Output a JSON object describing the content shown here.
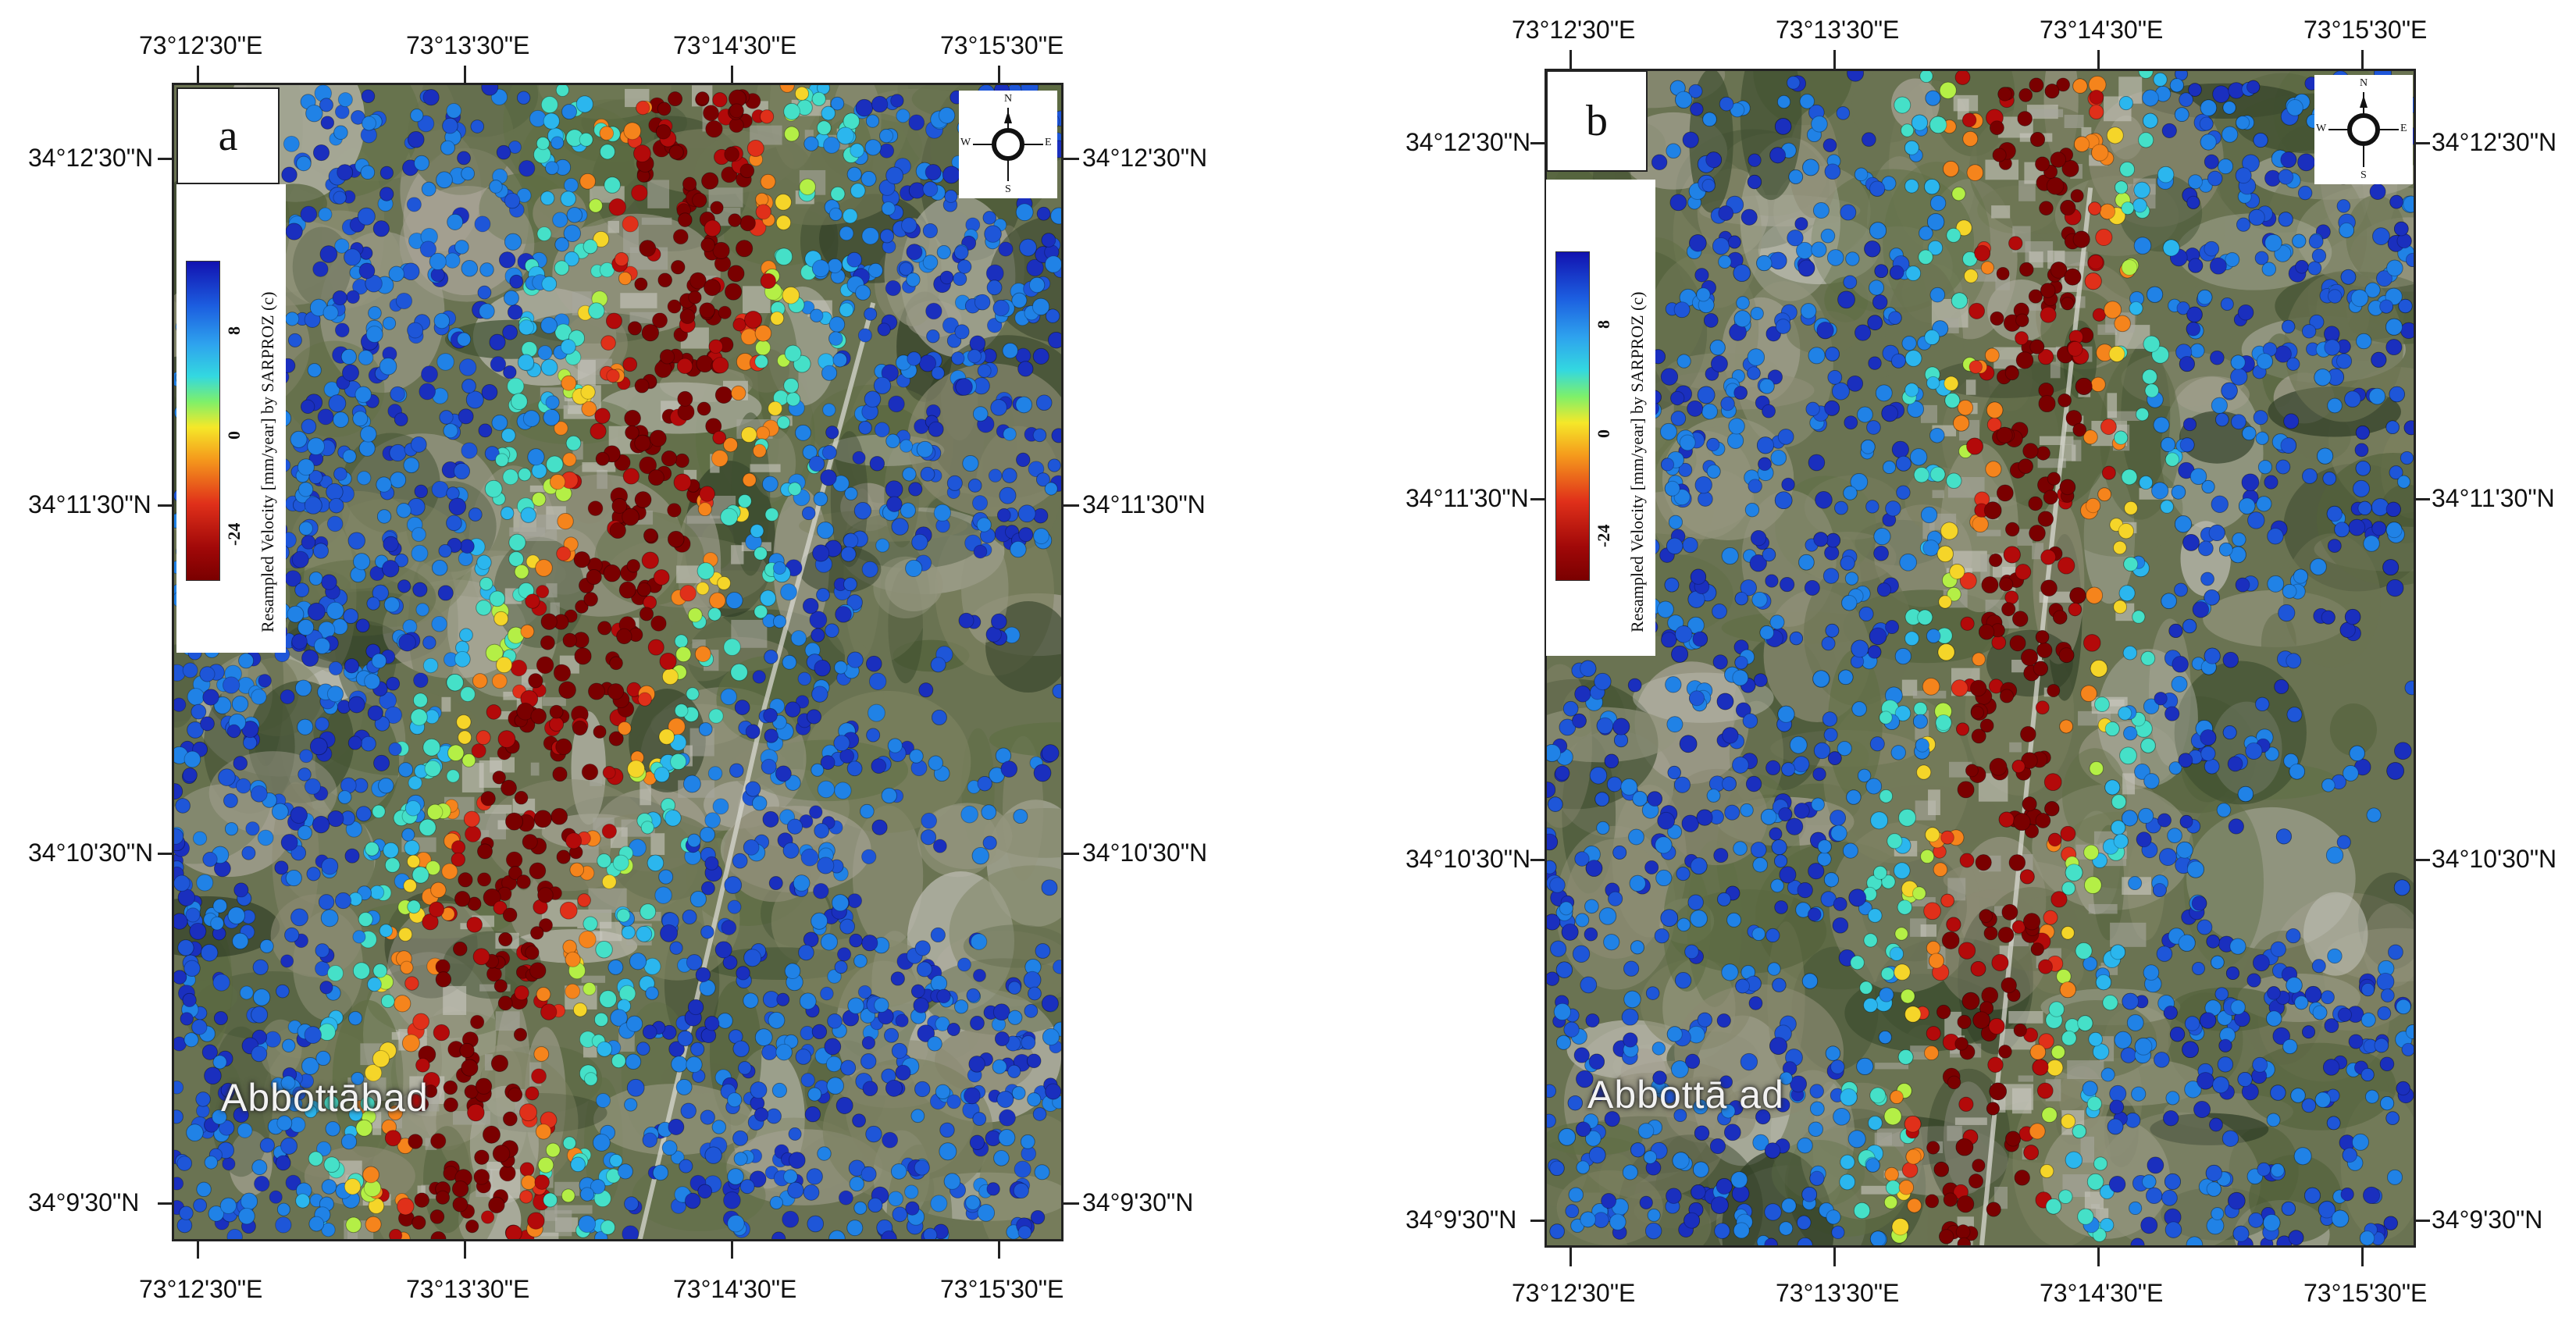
{
  "legend_colors": [
    "#7a0000",
    "#b30a0a",
    "#e0301a",
    "#f5841c",
    "#f5d529",
    "#b4ef46",
    "#45e0c8",
    "#2bb6ee",
    "#2082e6",
    "#1e56d8",
    "#1a2fbe"
  ],
  "terrain_colors": [
    "#3f4f30",
    "#52613a",
    "#6b7352",
    "#8b8a72",
    "#a9a597",
    "#bdbcb2",
    "#5f6e44",
    "#7c8160",
    "#2f3d25",
    "#95967f"
  ],
  "panel_a": {
    "letter": "a",
    "top_labels": [
      "73°12'30\"E",
      "73°13'30\"E",
      "73°14'30\"E",
      "73°15'30\"E"
    ],
    "bottom_labels": [
      "73°12'30\"E",
      "73°13'30\"E",
      "73°14'30\"E",
      "73°15'30\"E"
    ],
    "left_labels": [
      "34°12'30\"N",
      "34°11'30\"N",
      "34°10'30\"N",
      "34°9'30\"N"
    ],
    "right_labels": [
      "34°12'30\"N",
      "34°11'30\"N",
      "34°10'30\"N",
      "34°9'30\"N"
    ],
    "legend": {
      "title": "Resampled Velocity [mm/year] by SARPROZ (c)",
      "ticks": [
        "8",
        "0",
        "-24"
      ]
    },
    "compass": {
      "n": "N",
      "s": "S",
      "e": "E",
      "w": "W"
    },
    "place_label": "Abbottābad"
  },
  "panel_b": {
    "letter": "b",
    "top_labels": [
      "73°12'30\"E",
      "73°13'30\"E",
      "73°14'30\"E",
      "73°15'30\"E"
    ],
    "bottom_labels": [
      "73°12'30\"E",
      "73°13'30\"E",
      "73°14'30\"E",
      "73°15'30\"E"
    ],
    "left_labels": [
      "34°12'30\"N",
      "34°11'30\"N",
      "34°10'30\"N",
      "34°9'30\"N"
    ],
    "right_labels": [
      "34°12'30\"N",
      "34°11'30\"N",
      "34°10'30\"N",
      "34°9'30\"N"
    ],
    "legend": {
      "title": "Resampled Velocity [mm/year] by SARPROZ (c)",
      "ticks": [
        "8",
        "0",
        "-24"
      ]
    },
    "compass": {
      "n": "N",
      "s": "S",
      "e": "E",
      "w": "W"
    },
    "place_label": "Abbottā ad"
  }
}
